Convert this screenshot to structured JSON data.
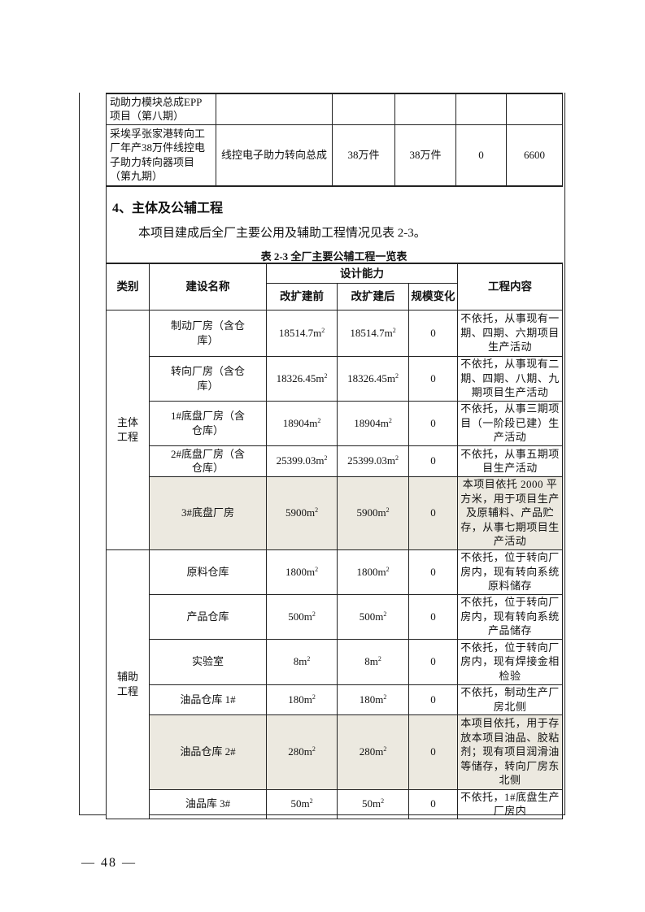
{
  "top_table": {
    "rows": [
      {
        "name": "动助力模块总成EPP项目（第八期）",
        "product": "",
        "before": "",
        "after": "",
        "change": "",
        "value": ""
      },
      {
        "name": "采埃孚张家港转向工厂年产38万件线控电子助力转向器项目（第九期）",
        "product": "线控电子助力转向总成",
        "before": "38万件",
        "after": "38万件",
        "change": "0",
        "value": "6600"
      }
    ]
  },
  "section": {
    "heading": "4、主体及公辅工程",
    "paragraph": "本项目建成后全厂主要公用及辅助工程情况见表 2-3。",
    "caption": "表 2-3   全厂主要公辅工程一览表"
  },
  "main_table": {
    "headers": {
      "category": "类别",
      "name": "建设名称",
      "capacity": "设计能力",
      "before": "改扩建前",
      "after": "改扩建后",
      "change": "规模变化",
      "content": "工程内容"
    },
    "unit": "m",
    "unit_sup": "2",
    "groups": [
      {
        "category": "主体工程",
        "rows": [
          {
            "name": "制动厂房（含仓库）",
            "before": "18514.7",
            "after": "18514.7",
            "change": "0",
            "content": "不依托，从事现有一期、四期、六期项目生产活动",
            "highlighted": false
          },
          {
            "name": "转向厂房（含仓库）",
            "before": "18326.45",
            "after": "18326.45",
            "change": "0",
            "content": "不依托，从事现有二期、四期、八期、九期项目生产活动",
            "highlighted": false
          },
          {
            "name": "1#底盘厂房（含仓库）",
            "before": "18904",
            "after": "18904",
            "change": "0",
            "content": "不依托，从事三期项目（一阶段已建）生产活动",
            "highlighted": false
          },
          {
            "name": "2#底盘厂房（含仓库）",
            "before": "25399.03",
            "after": "25399.03",
            "change": "0",
            "content": "不依托，从事五期项目生产活动",
            "highlighted": false
          },
          {
            "name": "3#底盘厂房",
            "before": "5900",
            "after": "5900",
            "change": "0",
            "content": "本项目依托 2000 平方米，用于项目生产及原辅料、产品贮存，从事七期项目生产活动",
            "highlighted": true
          }
        ]
      },
      {
        "category": "辅助工程",
        "rows": [
          {
            "name": "原料仓库",
            "before": "1800",
            "after": "1800",
            "change": "0",
            "content": "不依托，位于转向厂房内，现有转向系统原料储存",
            "highlighted": false
          },
          {
            "name": "产品仓库",
            "before": "500",
            "after": "500",
            "change": "0",
            "content": "不依托，位于转向厂房内，现有转向系统产品储存",
            "highlighted": false
          },
          {
            "name": "实验室",
            "before": "8",
            "after": "8",
            "change": "0",
            "content": "不依托，位于转向厂房内，现有焊接金相检验",
            "highlighted": false
          },
          {
            "name": "油品仓库 1#",
            "before": "180",
            "after": "180",
            "change": "0",
            "content": "不依托，制动生产厂房北侧",
            "highlighted": false
          },
          {
            "name": "油品仓库 2#",
            "before": "280",
            "after": "280",
            "change": "0",
            "content": "本项目依托，用于存放本项目油品、胶粘剂；现有项目润滑油等储存，转向厂房东北侧",
            "highlighted": true
          },
          {
            "name": "油品库 3#",
            "before": "50",
            "after": "50",
            "change": "0",
            "content": "不依托，1#底盘生产厂房内",
            "highlighted": false
          }
        ]
      }
    ],
    "highlight_color": "#ece9e0"
  },
  "footer": {
    "page_number": "— 48 —"
  }
}
